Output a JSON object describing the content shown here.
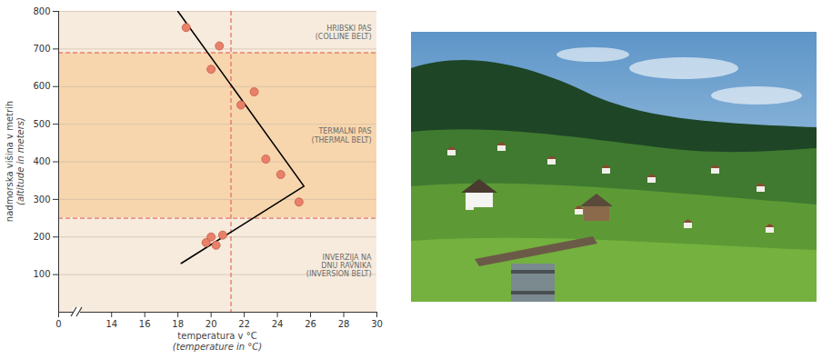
{
  "chart_data": {
    "type": "scatter",
    "x_label": [
      "temperatura v °C",
      "(temperature in °C)"
    ],
    "y_label": [
      "nadmorska višina v metrih",
      "(altitude in meters)"
    ],
    "points": {
      "x": [
        18.5,
        20.5,
        20.0,
        22.6,
        21.8,
        23.3,
        24.2,
        25.3,
        19.7,
        20.0,
        20.3,
        20.7
      ],
      "y": [
        757,
        708,
        646,
        586,
        551,
        407,
        366,
        293,
        185,
        200,
        178,
        205
      ],
      "color": "#e8806a",
      "marker": "circle"
    },
    "trend_line": {
      "x": [
        18.0,
        25.6,
        18.2
      ],
      "y": [
        800,
        335,
        130
      ],
      "color": "#000000"
    },
    "zones": [
      {
        "label": [
          "HRIBSKI PAS",
          "(COLLINE BELT)"
        ],
        "from": 690,
        "to": 800,
        "color": "#f6ebdd"
      },
      {
        "label": [
          "TERMALNI PAS",
          "(THERMAL BELT)"
        ],
        "from": 250,
        "to": 690,
        "color": "#f7d6ad"
      },
      {
        "label": [
          "INVERZIJA NA",
          "DNU RAVNIKA",
          "(INVERSION BELT)"
        ],
        "from": 0,
        "to": 250,
        "color": "#f6ebdd"
      }
    ],
    "reference_lines": {
      "x": [
        21.2
      ],
      "y": [
        250,
        690
      ],
      "color": "#e0524a",
      "line_style": "dashed"
    },
    "xlim": [
      0,
      30
    ],
    "x_break": [
      0,
      13
    ],
    "xticks": [
      0,
      14,
      16,
      18,
      20,
      22,
      24,
      26,
      28,
      30
    ],
    "ylim": [
      0,
      800
    ],
    "yticks": [
      100,
      200,
      300,
      400,
      500,
      600,
      700,
      800
    ],
    "grid": true
  }
}
